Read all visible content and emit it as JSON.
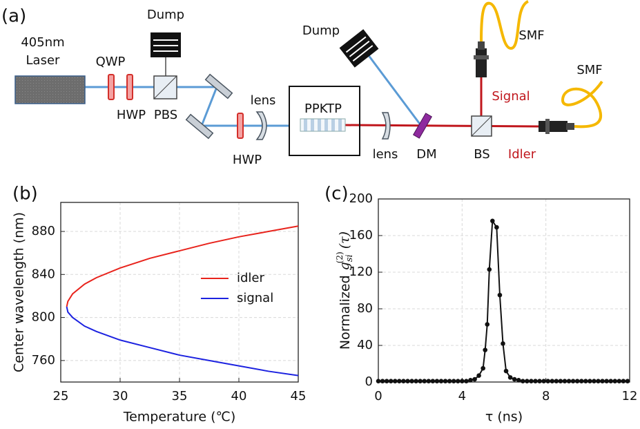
{
  "diagram": {
    "panel_label": "(a)",
    "labels": {
      "laser_1": "405nm",
      "laser_2": "Laser",
      "qwp": "QWP",
      "hwp_1": "HWP",
      "pbs": "PBS",
      "dump_1": "Dump",
      "lens_1": "lens",
      "hwp_2": "HWP",
      "ppktp": "PPKTP",
      "dump_2": "Dump",
      "lens_2": "lens",
      "dm": "DM",
      "bs": "BS",
      "signal": "Signal",
      "idler": "Idler",
      "smf_1": "SMF",
      "smf_2": "SMF"
    }
  },
  "chart_data": [
    {
      "type": "line",
      "panel_label": "(b)",
      "xlabel": "Temperature (℃)",
      "ylabel": "Center wavelength (nm)",
      "x": [
        25.5,
        25.6,
        26,
        27,
        28,
        30,
        32.5,
        35,
        37.5,
        40,
        42.5,
        45
      ],
      "series": [
        {
          "name": "idler",
          "color": "#e8231c",
          "values": [
            810,
            815,
            822,
            831,
            837,
            846,
            855,
            862,
            869,
            875,
            880,
            885
          ]
        },
        {
          "name": "signal",
          "color": "#1c22e0",
          "values": [
            810,
            805,
            800,
            792,
            787,
            779,
            772,
            765,
            760,
            755,
            750,
            746
          ]
        }
      ],
      "xlim": [
        25,
        45
      ],
      "xticks": [
        25,
        30,
        35,
        40,
        45
      ],
      "ylim": [
        740,
        907
      ],
      "yticks": [
        760,
        800,
        840,
        880
      ],
      "grid": true,
      "legend": "center-right"
    },
    {
      "type": "line",
      "panel_label": "(c)",
      "xlabel": "τ (ns)",
      "ylabel": {
        "prefix": "Normalized",
        "symbol": "g",
        "subscript": "si",
        "superscript": "(2)",
        "argument": "(τ)"
      },
      "x": [
        0,
        0.2,
        0.4,
        0.6,
        0.8,
        1.0,
        1.2,
        1.4,
        1.6,
        1.8,
        2.0,
        2.2,
        2.4,
        2.6,
        2.8,
        3.0,
        3.2,
        3.4,
        3.6,
        3.8,
        4.0,
        4.2,
        4.4,
        4.6,
        4.8,
        5.0,
        5.1,
        5.2,
        5.3,
        5.45,
        5.65,
        5.8,
        5.95,
        6.1,
        6.3,
        6.5,
        6.7,
        6.9,
        7.1,
        7.3,
        7.5,
        7.7,
        7.9,
        8.1,
        8.3,
        8.5,
        8.7,
        8.9,
        9.1,
        9.3,
        9.5,
        9.7,
        9.9,
        10.1,
        10.3,
        10.5,
        10.7,
        10.9,
        11.1,
        11.3,
        11.5,
        11.7,
        11.9
      ],
      "values": [
        1,
        1,
        1,
        1,
        1,
        1,
        1,
        1,
        1,
        1,
        1,
        1,
        1,
        1,
        1,
        1,
        1,
        1,
        1,
        1,
        1,
        1,
        2,
        3,
        7,
        15,
        35,
        63,
        123,
        176,
        169,
        95,
        42,
        12,
        5,
        3,
        2,
        1,
        1,
        1,
        1,
        1,
        1,
        1,
        1,
        1,
        1,
        1,
        1,
        1,
        1,
        1,
        1,
        1,
        1,
        1,
        1,
        1,
        1,
        1,
        1,
        1,
        1
      ],
      "color": "#111111",
      "markers": true,
      "xlim": [
        0,
        12
      ],
      "xticks": [
        0,
        4,
        8,
        12
      ],
      "ylim": [
        0,
        200
      ],
      "yticks": [
        0,
        40,
        80,
        120,
        160,
        200
      ],
      "grid": true
    }
  ]
}
